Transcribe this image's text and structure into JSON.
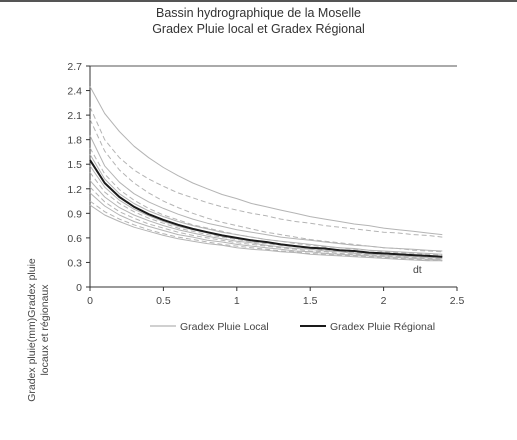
{
  "chart_data": {
    "type": "line",
    "title": "Bassin hydrographique de la Moselle",
    "subtitle": "Gradex Pluie local et Gradex Régional",
    "ylabel_line1": "Gradex pluie(mm)Gradex pluie",
    "ylabel_line2": "locaux et régionaux",
    "xlabel": "dt",
    "xlim": [
      0,
      2.5
    ],
    "ylim": [
      0,
      2.7
    ],
    "x_ticks": [
      "0",
      "0.5",
      "1",
      "1.5",
      "2",
      "2.5"
    ],
    "y_ticks": [
      "0",
      "0.3",
      "0.6",
      "0.9",
      "1.2",
      "1.5",
      "1.8",
      "2.1",
      "2.4",
      "2.7"
    ],
    "legend_position": "bottom",
    "series_colors": {
      "local": "#b4b4b4",
      "regional": "#1a1a1a"
    },
    "x": [
      0,
      0.1,
      0.2,
      0.3,
      0.4,
      0.5,
      0.6,
      0.7,
      0.8,
      0.9,
      1.0,
      1.1,
      1.2,
      1.3,
      1.4,
      1.5,
      1.6,
      1.7,
      1.8,
      1.9,
      2.0,
      2.1,
      2.2,
      2.3,
      2.4
    ],
    "series": [
      {
        "name": "Gradex Pluie Local",
        "group": "local",
        "dashed": false,
        "values": [
          2.45,
          2.12,
          1.9,
          1.72,
          1.58,
          1.46,
          1.36,
          1.27,
          1.2,
          1.13,
          1.08,
          1.02,
          0.98,
          0.94,
          0.9,
          0.86,
          0.83,
          0.8,
          0.77,
          0.75,
          0.72,
          0.7,
          0.68,
          0.66,
          0.64
        ]
      },
      {
        "name": "Gradex Pluie Local",
        "group": "local",
        "dashed": true,
        "values": [
          2.2,
          1.8,
          1.58,
          1.43,
          1.32,
          1.23,
          1.15,
          1.09,
          1.03,
          0.98,
          0.94,
          0.9,
          0.87,
          0.83,
          0.8,
          0.78,
          0.75,
          0.73,
          0.71,
          0.69,
          0.67,
          0.66,
          0.64,
          0.63,
          0.61
        ]
      },
      {
        "name": "Gradex Pluie Local",
        "group": "local",
        "dashed": true,
        "values": [
          2.05,
          1.66,
          1.43,
          1.27,
          1.15,
          1.05,
          0.97,
          0.9,
          0.84,
          0.79,
          0.75,
          0.71,
          0.67,
          0.64,
          0.61,
          0.58,
          0.56,
          0.54,
          0.52,
          0.5,
          0.48,
          0.47,
          0.45,
          0.44,
          0.43
        ]
      },
      {
        "name": "Gradex Pluie Local",
        "group": "local",
        "dashed": false,
        "values": [
          1.85,
          1.48,
          1.28,
          1.14,
          1.04,
          0.96,
          0.89,
          0.83,
          0.78,
          0.74,
          0.7,
          0.67,
          0.64,
          0.61,
          0.59,
          0.57,
          0.55,
          0.53,
          0.51,
          0.5,
          0.48,
          0.47,
          0.46,
          0.45,
          0.44
        ]
      },
      {
        "name": "Gradex Pluie Local",
        "group": "local",
        "dashed": true,
        "values": [
          1.7,
          1.38,
          1.19,
          1.06,
          0.96,
          0.88,
          0.82,
          0.76,
          0.72,
          0.68,
          0.64,
          0.61,
          0.58,
          0.56,
          0.53,
          0.51,
          0.49,
          0.48,
          0.46,
          0.45,
          0.43,
          0.42,
          0.41,
          0.4,
          0.39
        ]
      },
      {
        "name": "Gradex Pluie Local",
        "group": "local",
        "dashed": false,
        "values": [
          1.62,
          1.32,
          1.14,
          1.02,
          0.93,
          0.86,
          0.8,
          0.75,
          0.71,
          0.67,
          0.64,
          0.61,
          0.58,
          0.56,
          0.54,
          0.52,
          0.5,
          0.48,
          0.47,
          0.45,
          0.44,
          0.43,
          0.42,
          0.41,
          0.4
        ]
      },
      {
        "name": "Gradex Pluie Local",
        "group": "local",
        "dashed": true,
        "values": [
          1.55,
          1.27,
          1.1,
          0.98,
          0.89,
          0.82,
          0.76,
          0.71,
          0.67,
          0.63,
          0.6,
          0.57,
          0.55,
          0.52,
          0.5,
          0.48,
          0.47,
          0.45,
          0.44,
          0.42,
          0.41,
          0.4,
          0.39,
          0.38,
          0.37
        ]
      },
      {
        "name": "Gradex Pluie Local",
        "group": "local",
        "dashed": false,
        "values": [
          1.48,
          1.22,
          1.06,
          0.95,
          0.87,
          0.8,
          0.74,
          0.7,
          0.66,
          0.62,
          0.59,
          0.56,
          0.54,
          0.52,
          0.5,
          0.48,
          0.46,
          0.45,
          0.43,
          0.42,
          0.41,
          0.4,
          0.39,
          0.38,
          0.37
        ]
      },
      {
        "name": "Gradex Pluie Local",
        "group": "local",
        "dashed": true,
        "values": [
          1.4,
          1.16,
          1.02,
          0.92,
          0.84,
          0.78,
          0.72,
          0.68,
          0.64,
          0.61,
          0.58,
          0.55,
          0.53,
          0.51,
          0.49,
          0.47,
          0.45,
          0.44,
          0.42,
          0.41,
          0.4,
          0.39,
          0.38,
          0.37,
          0.36
        ]
      },
      {
        "name": "Gradex Pluie Local",
        "group": "local",
        "dashed": false,
        "values": [
          1.3,
          1.1,
          0.97,
          0.88,
          0.81,
          0.75,
          0.7,
          0.66,
          0.62,
          0.59,
          0.56,
          0.54,
          0.51,
          0.49,
          0.47,
          0.46,
          0.44,
          0.43,
          0.41,
          0.4,
          0.39,
          0.38,
          0.37,
          0.36,
          0.35
        ]
      },
      {
        "name": "Gradex Pluie Local",
        "group": "local",
        "dashed": true,
        "values": [
          1.22,
          1.04,
          0.92,
          0.84,
          0.77,
          0.72,
          0.67,
          0.63,
          0.6,
          0.57,
          0.54,
          0.52,
          0.5,
          0.48,
          0.46,
          0.44,
          0.43,
          0.41,
          0.4,
          0.39,
          0.38,
          0.37,
          0.36,
          0.35,
          0.34
        ]
      },
      {
        "name": "Gradex Pluie Local",
        "group": "local",
        "dashed": false,
        "values": [
          1.15,
          0.99,
          0.88,
          0.8,
          0.74,
          0.69,
          0.64,
          0.61,
          0.57,
          0.55,
          0.52,
          0.5,
          0.48,
          0.46,
          0.44,
          0.43,
          0.41,
          0.4,
          0.39,
          0.38,
          0.37,
          0.36,
          0.35,
          0.34,
          0.33
        ]
      },
      {
        "name": "Gradex Pluie Local",
        "group": "local",
        "dashed": true,
        "values": [
          1.05,
          0.92,
          0.83,
          0.76,
          0.7,
          0.65,
          0.61,
          0.58,
          0.55,
          0.52,
          0.5,
          0.48,
          0.46,
          0.44,
          0.43,
          0.41,
          0.4,
          0.39,
          0.38,
          0.37,
          0.36,
          0.35,
          0.34,
          0.33,
          0.32
        ]
      },
      {
        "name": "Gradex Pluie Local",
        "group": "local",
        "dashed": false,
        "values": [
          1.0,
          0.88,
          0.8,
          0.73,
          0.68,
          0.63,
          0.59,
          0.56,
          0.53,
          0.51,
          0.48,
          0.46,
          0.45,
          0.43,
          0.42,
          0.4,
          0.39,
          0.38,
          0.37,
          0.36,
          0.35,
          0.34,
          0.33,
          0.32,
          0.32
        ]
      },
      {
        "name": "Gradex Pluie Régional",
        "group": "regional",
        "dashed": false,
        "values": [
          1.55,
          1.27,
          1.1,
          0.98,
          0.89,
          0.82,
          0.76,
          0.71,
          0.67,
          0.63,
          0.6,
          0.57,
          0.55,
          0.52,
          0.5,
          0.48,
          0.47,
          0.45,
          0.44,
          0.42,
          0.41,
          0.4,
          0.39,
          0.38,
          0.37
        ]
      }
    ],
    "legend": [
      {
        "label": "Gradex Pluie Local",
        "group": "local"
      },
      {
        "label": "Gradex Pluie Régional",
        "group": "regional"
      }
    ]
  }
}
